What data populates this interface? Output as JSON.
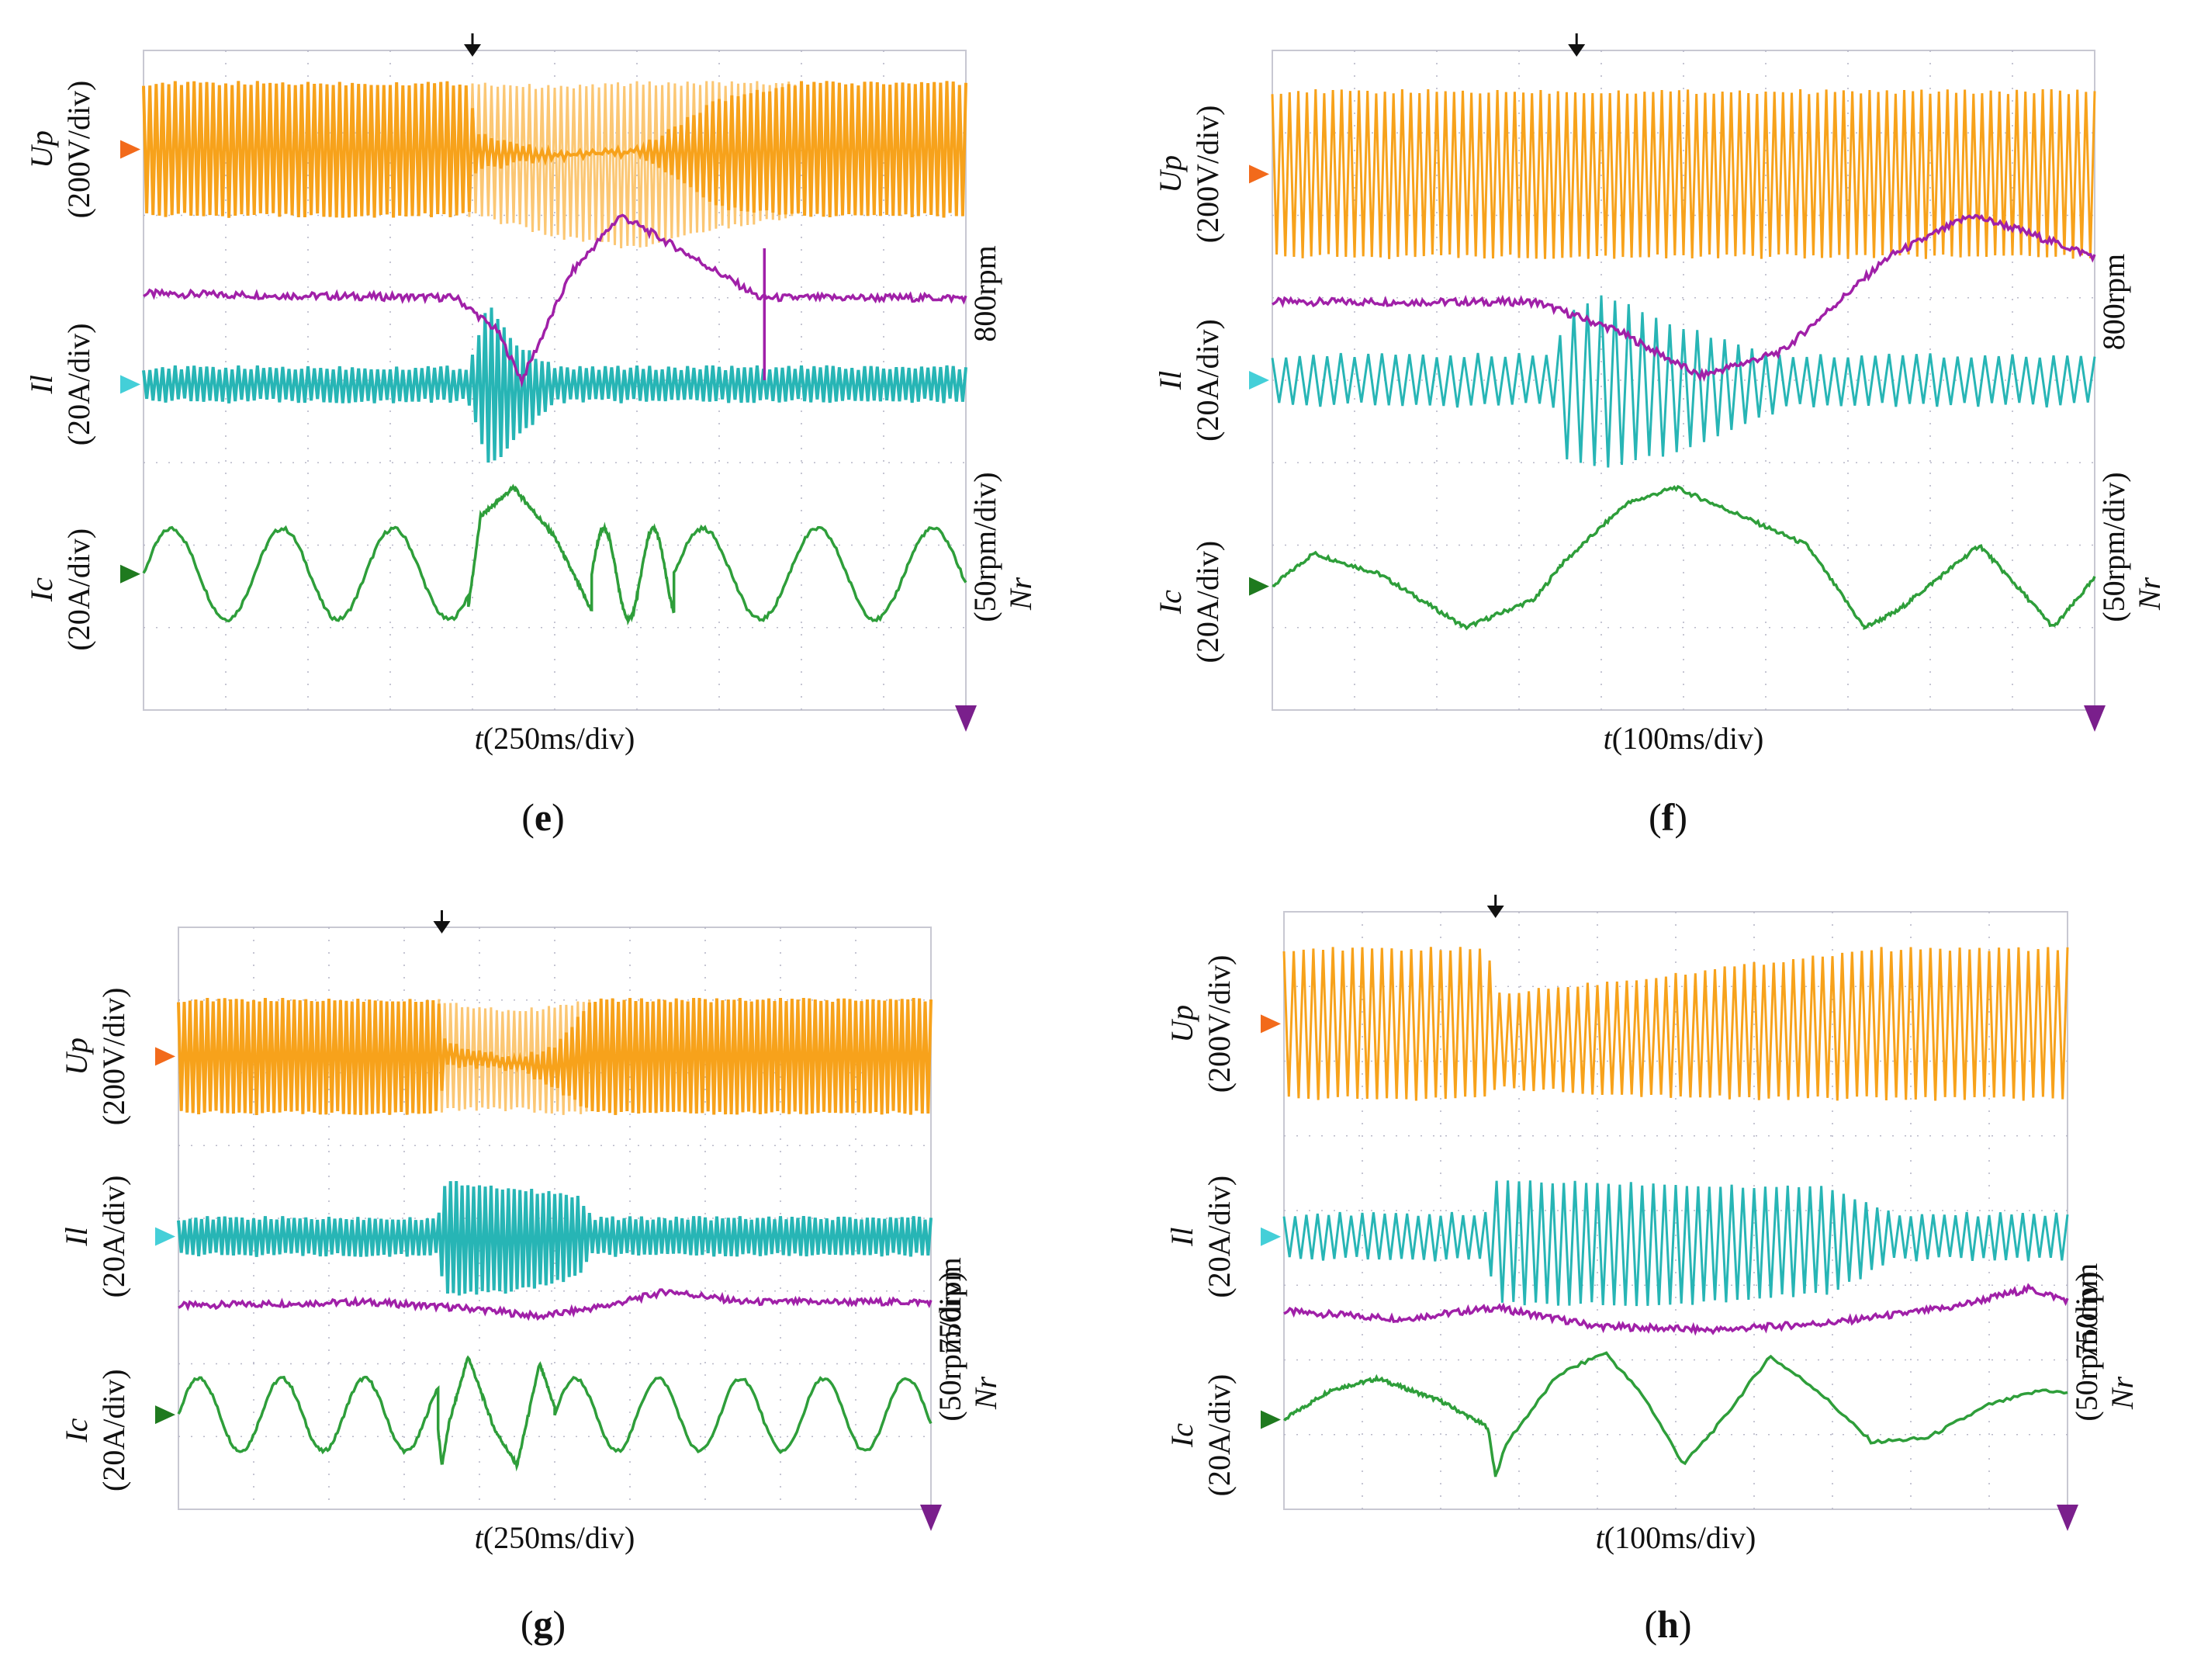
{
  "figure": {
    "panels": [
      {
        "id": "e",
        "label_letter": "e",
        "time_label": "t",
        "time_div": "(250ms/div)",
        "ylabel_up": "Up",
        "ylabel_up_div": "(200V/div)",
        "ylabel_il": "Il",
        "ylabel_il_div": "(20A/div)",
        "ylabel_ic": "Ic",
        "ylabel_ic_div": "(20A/div)",
        "speed_ref": "800rpm",
        "speed_symbol": "Nr",
        "speed_div": "(50rpm/div)"
      },
      {
        "id": "f",
        "label_letter": "f",
        "time_label": "t",
        "time_div": "(100ms/div)",
        "ylabel_up": "Up",
        "ylabel_up_div": "(200V/div)",
        "ylabel_il": "Il",
        "ylabel_il_div": "(20A/div)",
        "ylabel_ic": "Ic",
        "ylabel_ic_div": "(20A/div)",
        "speed_ref": "800rpm",
        "speed_symbol": "Nr",
        "speed_div": "(50rpm/div)"
      },
      {
        "id": "g",
        "label_letter": "g",
        "time_label": "t",
        "time_div": "(250ms/div)",
        "ylabel_up": "Up",
        "ylabel_up_div": "(200V/div)",
        "ylabel_il": "Il",
        "ylabel_il_div": "(20A/div)",
        "ylabel_ic": "Ic",
        "ylabel_ic_div": "(20A/div)",
        "speed_ref": "750rpm",
        "speed_symbol": "Nr",
        "speed_div": "(50rpm/div)"
      },
      {
        "id": "h",
        "label_letter": "h",
        "time_label": "t",
        "time_div": "(100ms/div)",
        "ylabel_up": "Up",
        "ylabel_up_div": "(200V/div)",
        "ylabel_il": "Il",
        "ylabel_il_div": "(20A/div)",
        "ylabel_ic": "Ic",
        "ylabel_ic_div": "(20A/div)",
        "speed_ref": "750rpm",
        "speed_symbol": "Nr",
        "speed_div": "(50rpm/div)"
      }
    ]
  },
  "colors": {
    "up": "#f7a21b",
    "up_light": "#fbc774",
    "il": "#27b5b5",
    "ic": "#2e9e3a",
    "nr": "#a020a8",
    "marker_up": "#f26a1b",
    "marker_il": "#44cfd8",
    "marker_ic": "#1f7a1f",
    "marker_nr": "#7a1f8c",
    "grid": "#b8b8c8",
    "trigger": "#111111"
  },
  "chart_data": [
    {
      "type": "line",
      "panel": "e",
      "title": "(e)",
      "xlabel": "t(250ms/div)",
      "x_divisions": 10,
      "y_divisions": 8,
      "xlim": [
        0,
        10
      ],
      "ylim": [
        0,
        8
      ],
      "trigger_x": 4.0,
      "series": [
        {
          "name": "Up",
          "unit": "200V/div",
          "kind": "envelope",
          "carrier_cycles": 130,
          "x": [
            0,
            3.95,
            4.05,
            5,
            6,
            7,
            8,
            10
          ],
          "hi": [
            7.6,
            7.6,
            7.0,
            6.75,
            6.8,
            7.4,
            7.6,
            7.6
          ],
          "lo": [
            6.0,
            6.0,
            6.55,
            6.7,
            6.75,
            6.1,
            6.0,
            6.0
          ],
          "light_hi": [
            7.6,
            7.6,
            7.6,
            7.55,
            7.6,
            7.6,
            7.6,
            7.6
          ],
          "light_lo": [
            6.0,
            6.0,
            6.0,
            5.75,
            5.6,
            5.85,
            6.0,
            6.0
          ]
        },
        {
          "name": "Il",
          "unit": "20A/div",
          "kind": "envelope",
          "carrier_cycles": 130,
          "x": [
            0,
            3.95,
            4.2,
            4.5,
            5.0,
            10
          ],
          "hi": [
            4.15,
            4.15,
            4.95,
            4.45,
            4.15,
            4.15
          ],
          "lo": [
            3.75,
            3.75,
            2.95,
            3.25,
            3.75,
            3.75
          ]
        },
        {
          "name": "Nr",
          "unit": "50rpm/div",
          "ref_label": "800rpm",
          "kind": "line",
          "x": [
            0,
            3.8,
            4.3,
            4.6,
            5.2,
            5.8,
            6.5,
            7.5,
            10
          ],
          "y": [
            5.05,
            5.0,
            4.6,
            4.0,
            5.3,
            6.0,
            5.6,
            5.0,
            5.0
          ],
          "spike": {
            "x": 7.55,
            "y_top": 5.6,
            "y_bottom": 4.0
          }
        },
        {
          "name": "Ic",
          "unit": "20A/div",
          "kind": "sine",
          "segments": [
            {
              "x0": 0,
              "x1": 3.95,
              "period": 1.35,
              "center": 1.65,
              "amp": 0.55,
              "phase": 0.0
            },
            {
              "x0": 3.95,
              "x1": 5.45,
              "points": [
                [
                  3.95,
                  1.25
                ],
                [
                  4.1,
                  2.35
                ],
                [
                  4.5,
                  2.7
                ],
                [
                  5.0,
                  2.1
                ],
                [
                  5.45,
                  1.2
                ]
              ]
            },
            {
              "x0": 5.45,
              "x1": 6.45,
              "period": 0.6,
              "center": 1.65,
              "amp": 0.55,
              "phase": 0.0
            },
            {
              "x0": 6.45,
              "x1": 10,
              "period": 1.4,
              "center": 1.65,
              "amp": 0.55,
              "phase": 0.0
            }
          ]
        }
      ]
    },
    {
      "type": "line",
      "panel": "f",
      "title": "(f)",
      "xlabel": "t(100ms/div)",
      "x_divisions": 10,
      "y_divisions": 8,
      "xlim": [
        0,
        10
      ],
      "ylim": [
        0,
        8
      ],
      "trigger_x": 3.7,
      "series": [
        {
          "name": "Up",
          "unit": "200V/div",
          "kind": "envelope",
          "carrier_cycles": 95,
          "x": [
            0,
            10
          ],
          "hi": [
            7.5,
            7.5
          ],
          "lo": [
            5.5,
            5.5
          ]
        },
        {
          "name": "Il",
          "unit": "20A/div",
          "kind": "envelope",
          "carrier_cycles": 60,
          "x": [
            0,
            3.4,
            3.6,
            4.0,
            4.8,
            5.8,
            6.3,
            10
          ],
          "hi": [
            4.3,
            4.3,
            4.8,
            5.05,
            4.7,
            4.4,
            4.3,
            4.3
          ],
          "lo": [
            3.7,
            3.7,
            3.0,
            2.95,
            3.1,
            3.5,
            3.7,
            3.7
          ]
        },
        {
          "name": "Nr",
          "unit": "50rpm/div",
          "ref_label": "800rpm",
          "kind": "line",
          "x": [
            0,
            3.2,
            4.2,
            5.2,
            6.2,
            7.5,
            8.5,
            9.0,
            10
          ],
          "y": [
            4.95,
            4.95,
            4.6,
            4.05,
            4.35,
            5.5,
            6.0,
            5.85,
            5.5
          ]
        },
        {
          "name": "Ic",
          "unit": "20A/div",
          "kind": "sine",
          "segments": [
            {
              "x0": 0,
              "x1": 3.5,
              "points": [
                [
                  0,
                  1.5
                ],
                [
                  0.5,
                  1.9
                ],
                [
                  1.3,
                  1.65
                ],
                [
                  2.35,
                  1.0
                ],
                [
                  3.2,
                  1.35
                ],
                [
                  3.5,
                  1.75
                ]
              ]
            },
            {
              "x0": 3.5,
              "x1": 7.2,
              "points": [
                [
                  3.5,
                  1.75
                ],
                [
                  4.3,
                  2.5
                ],
                [
                  4.9,
                  2.7
                ],
                [
                  5.6,
                  2.4
                ],
                [
                  6.5,
                  2.0
                ],
                [
                  7.2,
                  1.0
                ]
              ]
            },
            {
              "x0": 7.2,
              "x1": 10,
              "points": [
                [
                  7.2,
                  1.0
                ],
                [
                  7.6,
                  1.2
                ],
                [
                  8.6,
                  2.0
                ],
                [
                  9.1,
                  1.45
                ],
                [
                  9.5,
                  1.0
                ],
                [
                  10,
                  1.6
                ]
              ]
            }
          ]
        }
      ]
    },
    {
      "type": "line",
      "panel": "g",
      "title": "(g)",
      "xlabel": "t(250ms/div)",
      "x_divisions": 10,
      "y_divisions": 8,
      "xlim": [
        0,
        10
      ],
      "ylim": [
        0,
        8
      ],
      "trigger_x": 3.5,
      "series": [
        {
          "name": "Up",
          "unit": "200V/div",
          "kind": "envelope",
          "carrier_cycles": 130,
          "x": [
            0,
            3.45,
            3.55,
            4.5,
            5.0,
            5.5,
            10
          ],
          "hi": [
            7.0,
            7.0,
            6.4,
            6.2,
            6.35,
            7.0,
            7.0
          ],
          "lo": [
            5.45,
            5.45,
            6.1,
            6.05,
            5.8,
            5.45,
            5.45
          ],
          "light_hi": [
            7.0,
            7.0,
            6.95,
            6.85,
            6.9,
            7.0,
            7.0
          ],
          "light_lo": [
            5.45,
            5.45,
            5.5,
            5.5,
            5.45,
            5.45,
            5.45
          ]
        },
        {
          "name": "Il",
          "unit": "20A/div",
          "kind": "envelope",
          "carrier_cycles": 130,
          "x": [
            0,
            3.45,
            3.55,
            4.5,
            5.3,
            5.5,
            10
          ],
          "hi": [
            4.0,
            4.0,
            4.5,
            4.4,
            4.3,
            4.0,
            4.0
          ],
          "lo": [
            3.5,
            3.5,
            2.95,
            3.0,
            3.2,
            3.5,
            3.5
          ]
        },
        {
          "name": "Nr",
          "unit": "50rpm/div",
          "ref_label": "750rpm",
          "kind": "line",
          "x": [
            0,
            2.5,
            4.0,
            4.8,
            5.7,
            6.5,
            7.5,
            10
          ],
          "y": [
            2.8,
            2.85,
            2.75,
            2.65,
            2.8,
            3.0,
            2.85,
            2.85
          ]
        },
        {
          "name": "Ic",
          "unit": "20A/div",
          "kind": "sine",
          "segments": [
            {
              "x0": 0,
              "x1": 3.45,
              "period": 1.1,
              "center": 1.3,
              "amp": 0.5,
              "phase": 0.0
            },
            {
              "x0": 3.45,
              "x1": 5.0,
              "points": [
                [
                  3.45,
                  1.1
                ],
                [
                  3.5,
                  0.6
                ],
                [
                  3.6,
                  1.2
                ],
                [
                  3.85,
                  2.1
                ],
                [
                  4.2,
                  1.1
                ],
                [
                  4.5,
                  0.6
                ],
                [
                  4.8,
                  2.0
                ],
                [
                  5.0,
                  1.4
                ]
              ]
            },
            {
              "x0": 5.0,
              "x1": 10,
              "period": 1.1,
              "center": 1.3,
              "amp": 0.5,
              "phase": 0.0
            }
          ]
        }
      ]
    },
    {
      "type": "line",
      "panel": "h",
      "title": "(h)",
      "xlabel": "t(100ms/div)",
      "x_divisions": 10,
      "y_divisions": 8,
      "xlim": [
        0,
        10
      ],
      "ylim": [
        0,
        8
      ],
      "trigger_x": 2.7,
      "series": [
        {
          "name": "Up",
          "unit": "200V/div",
          "kind": "envelope",
          "carrier_cycles": 80,
          "x": [
            0,
            2.6,
            2.7,
            4.5,
            6.0,
            7.5,
            10
          ],
          "hi": [
            7.5,
            7.5,
            6.9,
            7.1,
            7.3,
            7.5,
            7.5
          ],
          "lo": [
            5.5,
            5.5,
            5.65,
            5.55,
            5.5,
            5.5,
            5.5
          ]
        },
        {
          "name": "Il",
          "unit": "20A/div",
          "kind": "envelope",
          "carrier_cycles": 70,
          "x": [
            0,
            2.6,
            2.7,
            5.0,
            7.0,
            7.8,
            10
          ],
          "hi": [
            3.95,
            3.95,
            4.4,
            4.35,
            4.3,
            3.95,
            3.95
          ],
          "lo": [
            3.35,
            3.35,
            2.75,
            2.75,
            2.9,
            3.35,
            3.35
          ]
        },
        {
          "name": "Nr",
          "unit": "50rpm/div",
          "ref_label": "750rpm",
          "kind": "line",
          "x": [
            0,
            1.5,
            2.7,
            4.0,
            5.5,
            7.0,
            8.5,
            9.5,
            10
          ],
          "y": [
            2.65,
            2.55,
            2.7,
            2.45,
            2.4,
            2.5,
            2.7,
            2.95,
            2.8
          ]
        },
        {
          "name": "Ic",
          "unit": "20A/div",
          "kind": "sine",
          "segments": [
            {
              "x0": 0,
              "x1": 2.7,
              "points": [
                [
                  0,
                  1.2
                ],
                [
                  0.6,
                  1.6
                ],
                [
                  1.2,
                  1.75
                ],
                [
                  2.0,
                  1.45
                ],
                [
                  2.6,
                  1.1
                ],
                [
                  2.7,
                  0.45
                ]
              ]
            },
            {
              "x0": 2.7,
              "x1": 10,
              "points": [
                [
                  2.7,
                  0.45
                ],
                [
                  2.85,
                  0.9
                ],
                [
                  3.5,
                  1.8
                ],
                [
                  4.1,
                  2.1
                ],
                [
                  4.6,
                  1.5
                ],
                [
                  5.1,
                  0.6
                ],
                [
                  5.6,
                  1.2
                ],
                [
                  6.2,
                  2.05
                ],
                [
                  6.8,
                  1.6
                ],
                [
                  7.5,
                  0.9
                ],
                [
                  8.2,
                  0.95
                ],
                [
                  9.0,
                  1.4
                ],
                [
                  9.7,
                  1.6
                ],
                [
                  10,
                  1.55
                ]
              ]
            }
          ]
        }
      ]
    }
  ]
}
